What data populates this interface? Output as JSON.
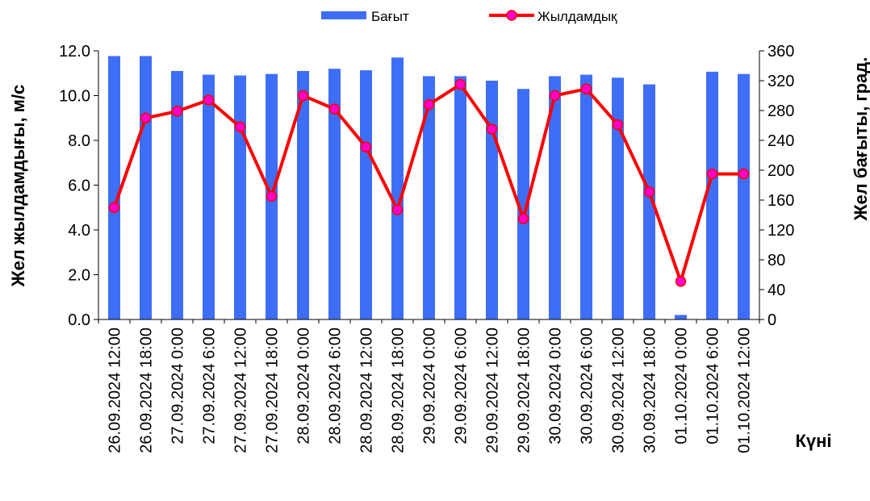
{
  "chart_data": {
    "type": "bar",
    "categories": [
      "26.09.2024 12:00",
      "26.09.2024 18:00",
      "27.09.2024 0:00",
      "27.09.2024 6:00",
      "27.09.2024 12:00",
      "27.09.2024 18:00",
      "28.09.2024 0:00",
      "28.09.2024 6:00",
      "28.09.2024 12:00",
      "28.09.2024 18:00",
      "29.09.2024 0:00",
      "29.09.2024 6:00",
      "29.09.2024 12:00",
      "29.09.2024 18:00",
      "30.09.2024 0:00",
      "30.09.2024 6:00",
      "30.09.2024 12:00",
      "30.09.2024 18:00",
      "01.10.2024 0:00",
      "01.10.2024 6:00",
      "01.10.2024 12:00"
    ],
    "series": [
      {
        "name": "Бағыт",
        "type": "bar",
        "axis": "right",
        "color": "#3f6ef6",
        "values": [
          353,
          353,
          333,
          328,
          327,
          329,
          333,
          336,
          334,
          351,
          326,
          326,
          320,
          309,
          326,
          328,
          324,
          315,
          6,
          332,
          329
        ]
      },
      {
        "name": "Жылдамдық",
        "type": "line",
        "axis": "left",
        "color": "#ff0000",
        "marker_color": "#ff00cc",
        "values": [
          5.0,
          9.0,
          9.3,
          9.8,
          8.6,
          5.5,
          10.0,
          9.4,
          7.7,
          4.9,
          9.6,
          10.5,
          8.5,
          4.5,
          10.0,
          10.3,
          8.7,
          5.7,
          1.7,
          6.5,
          6.5
        ]
      }
    ],
    "y_left": {
      "label": "Жел жылдамдығы, м/с",
      "lim": [
        0,
        12
      ],
      "ticks": [
        "0.0",
        "2.0",
        "4.0",
        "6.0",
        "8.0",
        "10.0",
        "12.0"
      ]
    },
    "y_right": {
      "label": "Жел бағыты, град.",
      "lim": [
        0,
        360
      ],
      "ticks": [
        "0",
        "40",
        "80",
        "120",
        "160",
        "200",
        "240",
        "280",
        "320",
        "360"
      ]
    },
    "xlabel": "Күні",
    "legend_position": "top-center",
    "grid": false
  }
}
